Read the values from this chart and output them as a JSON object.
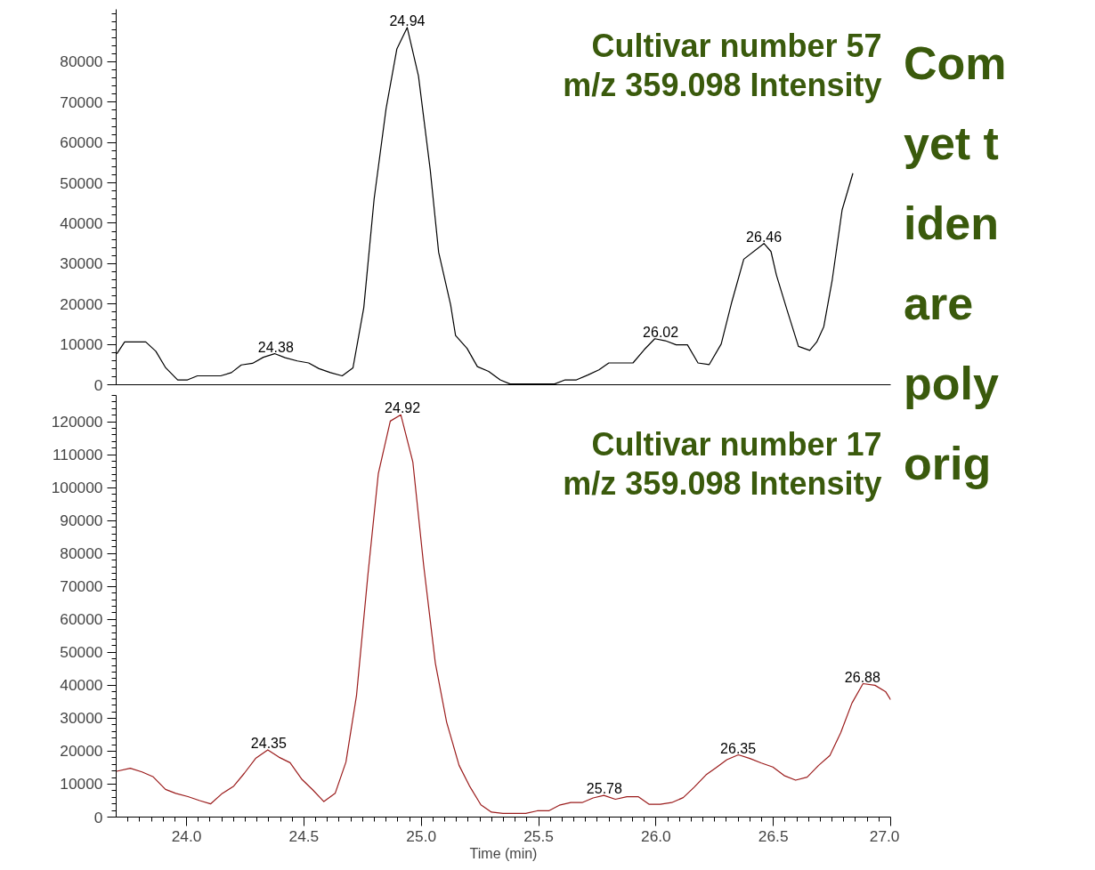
{
  "chart_data": [
    {
      "type": "line",
      "title": "Cultivar number 57",
      "subtitle": "m/z 359.098 Intensity",
      "xlim": [
        23.7,
        27.0
      ],
      "ylim": [
        0,
        93000
      ],
      "yticks": [
        0,
        10000,
        20000,
        30000,
        40000,
        50000,
        60000,
        70000,
        80000
      ],
      "grid": false,
      "tick_labels": "y",
      "marker": "none",
      "series": [
        {
          "color": "#000000",
          "x": [
            23.703,
            23.736,
            23.826,
            23.869,
            23.911,
            23.962,
            24.004,
            24.046,
            24.145,
            24.191,
            24.233,
            24.281,
            24.327,
            24.375,
            24.42,
            24.472,
            24.52,
            24.564,
            24.613,
            24.663,
            24.709,
            24.755,
            24.799,
            24.85,
            24.896,
            24.94,
            24.988,
            25.038,
            25.074,
            25.125,
            25.146,
            25.195,
            25.239,
            25.287,
            25.336,
            25.378,
            25.568,
            25.613,
            25.661,
            25.709,
            25.757,
            25.799,
            25.902,
            25.95,
            25.995,
            26.04,
            26.086,
            26.134,
            26.179,
            26.227,
            26.278,
            26.323,
            26.374,
            26.46,
            26.49,
            26.513,
            26.558,
            26.607,
            26.655,
            26.685,
            26.715,
            26.751,
            26.793,
            26.839
          ],
          "values": [
            7700,
            10600,
            10600,
            8300,
            4200,
            1200,
            1200,
            2200,
            2200,
            3000,
            4900,
            5300,
            6800,
            7700,
            6700,
            5900,
            5400,
            4000,
            3000,
            2200,
            4200,
            19100,
            46000,
            68400,
            83200,
            88500,
            76500,
            53300,
            32800,
            19800,
            12200,
            9000,
            4500,
            3300,
            1200,
            200,
            200,
            1200,
            1200,
            2400,
            3700,
            5400,
            5400,
            8700,
            11400,
            10900,
            9900,
            9900,
            5400,
            5000,
            10100,
            20500,
            31100,
            35000,
            33000,
            27200,
            18600,
            9500,
            8500,
            10600,
            14400,
            26000,
            43300,
            52400
          ]
        }
      ],
      "annotations": [
        {
          "text": "24.38",
          "x": 24.38,
          "y": 7700
        },
        {
          "text": "24.94",
          "x": 24.94,
          "y": 88500
        },
        {
          "text": "26.02",
          "x": 26.02,
          "y": 11400
        },
        {
          "text": "26.46",
          "x": 26.46,
          "y": 35000
        },
        "Com",
        "yet t",
        "iden",
        "are",
        "poly",
        "orig"
      ]
    },
    {
      "type": "line",
      "title": "Cultivar number 17",
      "subtitle": "m/z 359.098 Intensity",
      "xlabel": "Time (min)",
      "xlim": [
        23.7,
        27.0
      ],
      "ylim": [
        0,
        128000
      ],
      "xticks": [
        {
          "value": 24,
          "label": "24.0"
        },
        24.5,
        {
          "value": 25,
          "label": "25.0"
        },
        25.5,
        {
          "value": 26,
          "label": "26.0"
        },
        26.5,
        {
          "value": 27,
          "label": "27.0"
        }
      ],
      "yticks": [
        0,
        10000,
        20000,
        30000,
        40000,
        50000,
        60000,
        70000,
        80000,
        90000,
        100000,
        110000,
        120000
      ],
      "grid": false,
      "marker": "none",
      "series": [
        {
          "color": "#9b1c1c",
          "x": [
            23.702,
            23.76,
            23.81,
            23.858,
            23.91,
            23.954,
            24.006,
            24.056,
            24.102,
            24.149,
            24.201,
            24.246,
            24.294,
            24.346,
            24.393,
            24.441,
            24.492,
            24.537,
            24.585,
            24.633,
            24.679,
            24.724,
            24.772,
            24.817,
            24.868,
            24.913,
            24.964,
            25.01,
            25.06,
            25.108,
            25.161,
            25.205,
            25.254,
            25.299,
            25.348,
            25.445,
            25.494,
            25.543,
            25.588,
            25.637,
            25.685,
            25.732,
            25.778,
            25.827,
            25.876,
            25.924,
            25.97,
            26.018,
            26.067,
            26.116,
            26.162,
            26.213,
            26.256,
            26.302,
            26.351,
            26.4,
            26.449,
            26.498,
            26.546,
            26.595,
            26.644,
            26.693,
            26.741,
            26.787,
            26.835,
            26.882,
            26.933,
            26.978,
            27.0
          ],
          "values": [
            13900,
            14800,
            13700,
            12200,
            8400,
            7200,
            6200,
            5000,
            4000,
            7000,
            9400,
            13300,
            17800,
            20400,
            18200,
            16500,
            11400,
            8300,
            4700,
            7200,
            16700,
            36900,
            73100,
            104300,
            120200,
            122100,
            107800,
            76500,
            46700,
            28800,
            15700,
            9500,
            3700,
            1500,
            1100,
            1100,
            1900,
            1900,
            3600,
            4400,
            4400,
            5800,
            6600,
            5400,
            6200,
            6200,
            3900,
            3900,
            4400,
            5900,
            9000,
            12800,
            15000,
            17400,
            18900,
            17800,
            16400,
            15200,
            12600,
            11200,
            12100,
            15700,
            18700,
            25600,
            34600,
            40500,
            40000,
            38100,
            35600
          ]
        }
      ],
      "annotations": [
        {
          "text": "24.35",
          "x": 24.35,
          "y": 20400
        },
        {
          "text": "24.92",
          "x": 24.92,
          "y": 122100
        },
        {
          "text": "25.78",
          "x": 25.78,
          "y": 6600
        },
        {
          "text": "26.35",
          "x": 26.35,
          "y": 18900
        },
        {
          "text": "26.88",
          "x": 26.88,
          "y": 40500
        }
      ]
    }
  ]
}
